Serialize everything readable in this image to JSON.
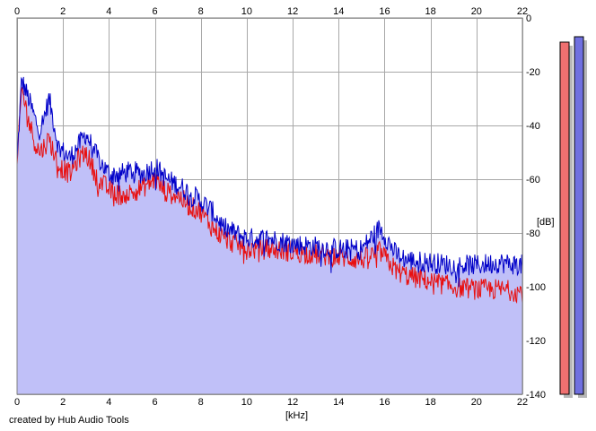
{
  "credit": "created by Hub Audio Tools",
  "chart_data": {
    "type": "area",
    "xlabel": "[kHz]",
    "ylabel": "[dB]",
    "xlim": [
      0,
      22
    ],
    "ylim": [
      -140,
      0
    ],
    "x_ticks": [
      0,
      2,
      4,
      6,
      8,
      10,
      12,
      14,
      16,
      18,
      20,
      22
    ],
    "y_ticks": [
      0,
      -20,
      -40,
      -60,
      -80,
      -100,
      -120,
      -140
    ],
    "grid": true,
    "colors": {
      "left_channel": "#e81010",
      "right_channel": "#0000c8",
      "fill": "#c0c0f8",
      "meter_left": "#f07070",
      "meter_right": "#7070e0"
    },
    "series": [
      {
        "color": "#0000c8",
        "x": [
          0,
          0.2,
          0.5,
          0.8,
          1.0,
          1.4,
          1.8,
          2.3,
          2.7,
          3.0,
          3.5,
          4.0,
          4.5,
          5.0,
          5.5,
          6.0,
          6.5,
          7.0,
          7.5,
          8.0,
          8.5,
          9.0,
          9.5,
          10.0,
          11.0,
          12.0,
          13.0,
          14.0,
          15.0,
          15.8,
          16.5,
          17.0,
          18.0,
          19.0,
          20.0,
          21.0,
          22.0
        ],
        "values": [
          -54,
          -23,
          -30,
          -38,
          -42,
          -30,
          -48,
          -52,
          -47,
          -43,
          -52,
          -58,
          -58,
          -57,
          -58,
          -55,
          -60,
          -62,
          -65,
          -68,
          -72,
          -78,
          -80,
          -82,
          -82,
          -84,
          -85,
          -86,
          -86,
          -78,
          -88,
          -90,
          -91,
          -92,
          -92,
          -91,
          -92
        ]
      },
      {
        "color": "#e81010",
        "x": [
          0,
          0.2,
          0.5,
          0.8,
          1.0,
          1.4,
          1.8,
          2.3,
          2.7,
          3.0,
          3.5,
          4.0,
          4.5,
          5.0,
          5.5,
          6.0,
          6.5,
          7.0,
          7.5,
          8.0,
          8.5,
          9.0,
          9.5,
          10.0,
          11.0,
          12.0,
          13.0,
          14.0,
          15.0,
          15.8,
          16.5,
          17.0,
          18.0,
          19.0,
          20.0,
          21.0,
          22.0
        ],
        "values": [
          -56,
          -26,
          -38,
          -47,
          -50,
          -45,
          -55,
          -58,
          -52,
          -50,
          -60,
          -64,
          -66,
          -65,
          -63,
          -60,
          -65,
          -66,
          -70,
          -72,
          -78,
          -82,
          -84,
          -86,
          -86,
          -87,
          -88,
          -89,
          -90,
          -87,
          -94,
          -96,
          -98,
          -100,
          -101,
          -101,
          -102
        ]
      }
    ],
    "level_meters": [
      {
        "color": "#f07070",
        "value_db": -9
      },
      {
        "color": "#7070e0",
        "value_db": -7
      }
    ]
  }
}
